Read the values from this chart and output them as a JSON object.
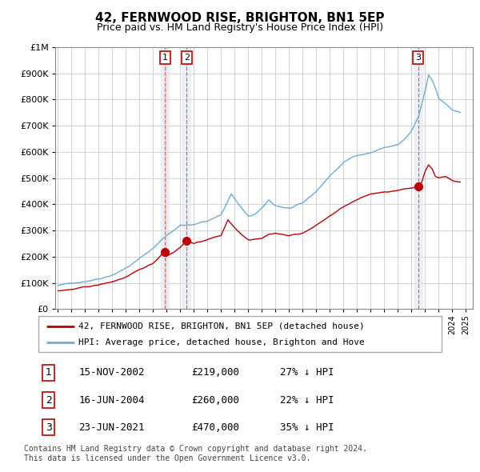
{
  "title": "42, FERNWOOD RISE, BRIGHTON, BN1 5EP",
  "subtitle": "Price paid vs. HM Land Registry's House Price Index (HPI)",
  "ymax": 1000000,
  "ymin": 0,
  "yticks": [
    0,
    100000,
    200000,
    300000,
    400000,
    500000,
    600000,
    700000,
    800000,
    900000,
    1000000
  ],
  "xmin": 1994.8,
  "xmax": 2025.5,
  "hpi_color": "#6aaed6",
  "price_color": "#c00000",
  "dashed_color": "#e06060",
  "shade_color": "#dce6f1",
  "transactions": [
    {
      "num": 1,
      "date_str": "15-NOV-2002",
      "date_x": 2002.88,
      "price": 219000,
      "label": "£219,000",
      "pct": "27% ↓ HPI"
    },
    {
      "num": 2,
      "date_str": "16-JUN-2004",
      "date_x": 2004.46,
      "price": 260000,
      "label": "£260,000",
      "pct": "22% ↓ HPI"
    },
    {
      "num": 3,
      "date_str": "23-JUN-2021",
      "date_x": 2021.48,
      "price": 470000,
      "label": "£470,000",
      "pct": "35% ↓ HPI"
    }
  ],
  "legend_line1": "42, FERNWOOD RISE, BRIGHTON, BN1 5EP (detached house)",
  "legend_line2": "HPI: Average price, detached house, Brighton and Hove",
  "footnote": "Contains HM Land Registry data © Crown copyright and database right 2024.\nThis data is licensed under the Open Government Licence v3.0."
}
